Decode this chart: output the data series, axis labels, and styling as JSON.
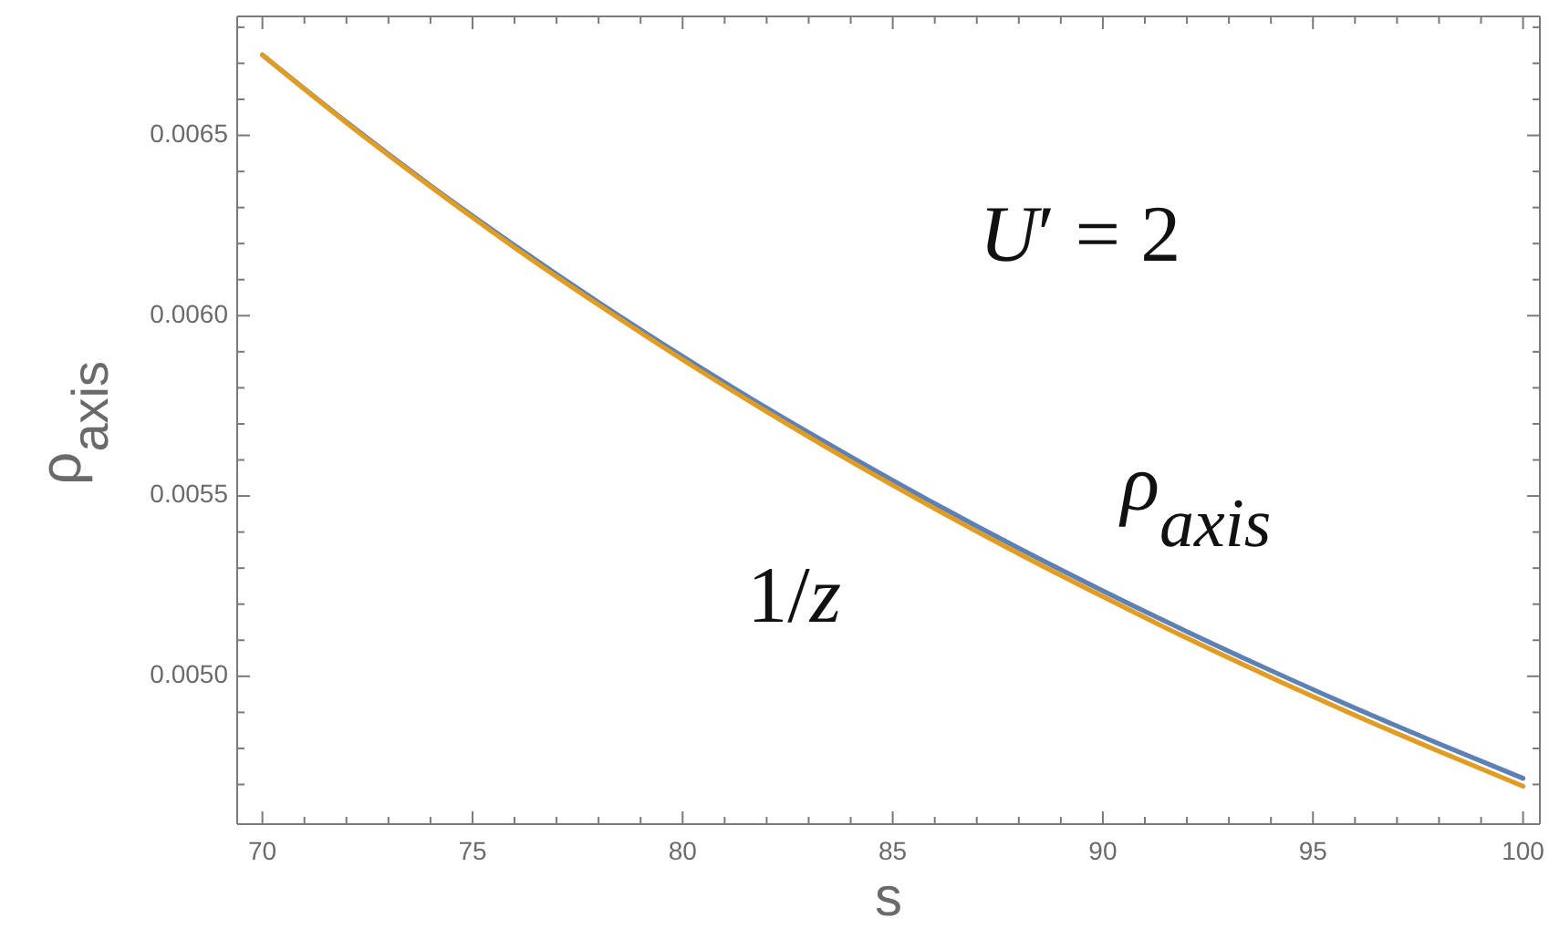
{
  "chart_data": {
    "type": "line",
    "xlabel": "s",
    "ylabel": "ρ$_{axis}$",
    "x": [
      70,
      72,
      74,
      76,
      78,
      80,
      82,
      84,
      86,
      88,
      90,
      92,
      94,
      96,
      98,
      100
    ],
    "series": [
      {
        "name": "ρ$_{axis}$",
        "color": "#5e81b5",
        "values": [
          0.006723,
          0.006537,
          0.006361,
          0.006195,
          0.006037,
          0.005887,
          0.005744,
          0.005609,
          0.005479,
          0.005355,
          0.005237,
          0.005124,
          0.005016,
          0.004912,
          0.004813,
          0.004717
        ]
      },
      {
        "name": "1/z",
        "color": "#e19c24",
        "values": [
          0.006723,
          0.006535,
          0.006358,
          0.006189,
          0.00603,
          0.005878,
          0.005734,
          0.005596,
          0.005465,
          0.00534,
          0.005221,
          0.005106,
          0.004997,
          0.004892,
          0.004792,
          0.004695
        ]
      }
    ],
    "xlim": [
      69.4,
      100.4
    ],
    "ylim": [
      0.00459,
      0.00683
    ],
    "xticks": [
      70,
      {
        "value": 71,
        "label": null
      },
      {
        "value": 72,
        "label": null
      },
      {
        "value": 73,
        "label": null
      },
      {
        "value": 74,
        "label": null
      },
      75,
      {
        "value": 76,
        "label": null
      },
      {
        "value": 77,
        "label": null
      },
      {
        "value": 78,
        "label": null
      },
      {
        "value": 79,
        "label": null
      },
      80,
      {
        "value": 81,
        "label": null
      },
      {
        "value": 82,
        "label": null
      },
      {
        "value": 83,
        "label": null
      },
      {
        "value": 84,
        "label": null
      },
      85,
      {
        "value": 86,
        "label": null
      },
      {
        "value": 87,
        "label": null
      },
      {
        "value": 88,
        "label": null
      },
      {
        "value": 89,
        "label": null
      },
      90,
      {
        "value": 91,
        "label": null
      },
      {
        "value": 92,
        "label": null
      },
      {
        "value": 93,
        "label": null
      },
      {
        "value": 94,
        "label": null
      },
      95,
      {
        "value": 96,
        "label": null
      },
      {
        "value": 97,
        "label": null
      },
      {
        "value": 98,
        "label": null
      },
      {
        "value": 99,
        "label": null
      },
      100
    ],
    "yticks": [
      {
        "value": 0.0047,
        "label": null
      },
      {
        "value": 0.0048,
        "label": null
      },
      {
        "value": 0.0049,
        "label": null
      },
      {
        "value": 0.005,
        "label": "0.0050"
      },
      {
        "value": 0.0051,
        "label": null
      },
      {
        "value": 0.0052,
        "label": null
      },
      {
        "value": 0.0053,
        "label": null
      },
      {
        "value": 0.0054,
        "label": null
      },
      0.0055,
      {
        "value": 0.0056,
        "label": null
      },
      {
        "value": 0.0057,
        "label": null
      },
      {
        "value": 0.0058,
        "label": null
      },
      {
        "value": 0.0059,
        "label": null
      },
      {
        "value": 0.006,
        "label": "0.0060"
      },
      {
        "value": 0.0061,
        "label": null
      },
      {
        "value": 0.0062,
        "label": null
      },
      {
        "value": 0.0063,
        "label": null
      },
      {
        "value": 0.0064,
        "label": null
      },
      0.0065,
      {
        "value": 0.0066,
        "label": null
      },
      {
        "value": 0.0067,
        "label": null
      },
      {
        "value": 0.0068,
        "label": null
      }
    ],
    "annotations": [
      "U′ = 2"
    ],
    "marker": "none",
    "line_style": "solid"
  }
}
